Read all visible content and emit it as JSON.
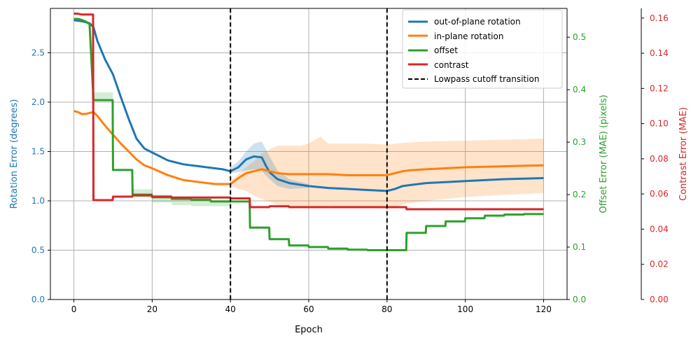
{
  "chart_data": {
    "type": "line",
    "xlabel": "Epoch",
    "xlim": [
      -6,
      126
    ],
    "x_ticks": [
      0,
      20,
      40,
      60,
      80,
      100,
      120
    ],
    "grid": true,
    "legend_position": "top-right",
    "axes": {
      "rotation": {
        "label": "Rotation Error (degrees)",
        "color": "#1f77b4",
        "ylim": [
          0,
          2.95
        ],
        "ticks": [
          "0.0",
          "0.5",
          "1.0",
          "1.5",
          "2.0",
          "2.5"
        ]
      },
      "offset": {
        "label": "Offset Error (MAE) (pixels)",
        "color": "#2ca02c",
        "ylim": [
          0,
          0.555
        ],
        "ticks": [
          "0.0",
          "0.1",
          "0.2",
          "0.3",
          "0.4",
          "0.5"
        ]
      },
      "contrast": {
        "label": "Contrast Error (MAE)",
        "color": "#d62728",
        "ylim": [
          0,
          0.1655
        ],
        "ticks": [
          "0.00",
          "0.02",
          "0.04",
          "0.06",
          "0.08",
          "0.10",
          "0.12",
          "0.14",
          "0.16"
        ]
      }
    },
    "vlines": [
      40,
      80
    ],
    "series": [
      {
        "name": "out-of-plane rotation",
        "axis": "rotation",
        "color": "#1f77b4",
        "x": [
          0,
          2,
          4,
          5,
          6,
          8,
          10,
          12,
          14,
          16,
          18,
          20,
          24,
          28,
          32,
          36,
          38,
          40,
          42,
          44,
          46,
          48,
          49,
          50,
          52,
          55,
          60,
          65,
          70,
          75,
          80,
          82,
          84,
          86,
          88,
          90,
          95,
          100,
          110,
          120
        ],
        "values": [
          2.83,
          2.82,
          2.8,
          2.76,
          2.62,
          2.43,
          2.28,
          2.05,
          1.83,
          1.63,
          1.53,
          1.49,
          1.41,
          1.37,
          1.35,
          1.33,
          1.32,
          1.3,
          1.34,
          1.42,
          1.45,
          1.44,
          1.36,
          1.29,
          1.22,
          1.18,
          1.15,
          1.13,
          1.12,
          1.11,
          1.1,
          1.12,
          1.15,
          1.16,
          1.17,
          1.18,
          1.19,
          1.2,
          1.22,
          1.23
        ],
        "band": {
          "x": [
            40,
            42,
            44,
            46,
            48,
            50,
            52,
            55,
            60
          ],
          "upper": [
            1.34,
            1.4,
            1.5,
            1.58,
            1.6,
            1.45,
            1.31,
            1.22,
            1.17
          ],
          "lower": [
            1.28,
            1.29,
            1.31,
            1.32,
            1.3,
            1.22,
            1.15,
            1.12,
            1.13
          ]
        }
      },
      {
        "name": "in-plane rotation",
        "axis": "rotation",
        "color": "#ff7f0e",
        "x": [
          0,
          1,
          2,
          3,
          4,
          5,
          6,
          8,
          10,
          12,
          14,
          16,
          18,
          20,
          24,
          28,
          32,
          36,
          38,
          40,
          42,
          44,
          46,
          48,
          50,
          52,
          55,
          60,
          65,
          70,
          75,
          80,
          82,
          84,
          86,
          90,
          100,
          110,
          120
        ],
        "values": [
          1.91,
          1.9,
          1.88,
          1.88,
          1.89,
          1.9,
          1.86,
          1.76,
          1.67,
          1.58,
          1.5,
          1.42,
          1.36,
          1.33,
          1.26,
          1.21,
          1.19,
          1.17,
          1.17,
          1.17,
          1.23,
          1.28,
          1.3,
          1.32,
          1.3,
          1.28,
          1.27,
          1.27,
          1.27,
          1.26,
          1.26,
          1.26,
          1.28,
          1.3,
          1.31,
          1.32,
          1.34,
          1.35,
          1.36
        ],
        "band": {
          "x": [
            40,
            42,
            44,
            46,
            48,
            50,
            52,
            55,
            58,
            60,
            62,
            63,
            65,
            70,
            75,
            80,
            85,
            90,
            100,
            110,
            120
          ],
          "upper": [
            1.19,
            1.27,
            1.34,
            1.4,
            1.48,
            1.52,
            1.56,
            1.56,
            1.56,
            1.58,
            1.63,
            1.65,
            1.58,
            1.58,
            1.58,
            1.57,
            1.59,
            1.6,
            1.61,
            1.62,
            1.63
          ],
          "lower": [
            1.15,
            1.12,
            1.1,
            1.05,
            1.02,
            0.99,
            0.96,
            0.94,
            0.93,
            0.95,
            0.93,
            0.94,
            0.95,
            0.93,
            0.93,
            0.92,
            0.97,
            1.0,
            1.04,
            1.06,
            1.08
          ]
        }
      },
      {
        "name": "offset",
        "axis": "offset",
        "color": "#2ca02c",
        "x": [
          0,
          1,
          2,
          3,
          4,
          5,
          9.9,
          10,
          14.9,
          15,
          19.9,
          20,
          24.9,
          25,
          29.9,
          30,
          34.9,
          35,
          39.9,
          40,
          44.9,
          45,
          49.9,
          50,
          54.9,
          55,
          59.9,
          60,
          64.9,
          65,
          69.9,
          70,
          74.9,
          75,
          79.9,
          80,
          84.9,
          85,
          89.9,
          90,
          94.9,
          95,
          99.9,
          100,
          104.9,
          105,
          109.9,
          110,
          114.9,
          115,
          120
        ],
        "values": [
          0.535,
          0.535,
          0.533,
          0.53,
          0.525,
          0.38,
          0.38,
          0.247,
          0.247,
          0.2,
          0.2,
          0.195,
          0.195,
          0.192,
          0.192,
          0.19,
          0.19,
          0.187,
          0.187,
          0.187,
          0.187,
          0.137,
          0.137,
          0.115,
          0.115,
          0.103,
          0.103,
          0.1,
          0.1,
          0.097,
          0.097,
          0.095,
          0.095,
          0.094,
          0.094,
          0.094,
          0.094,
          0.127,
          0.127,
          0.14,
          0.14,
          0.149,
          0.149,
          0.155,
          0.155,
          0.16,
          0.16,
          0.162,
          0.162,
          0.163,
          0.163
        ]
      },
      {
        "name": "contrast",
        "axis": "contrast",
        "color": "#d62728",
        "x": [
          0,
          1,
          2,
          3,
          4,
          4.9,
          5,
          9.9,
          10,
          14.9,
          15,
          19.9,
          20,
          24.9,
          25,
          39.9,
          40,
          44.9,
          45,
          49.9,
          50,
          54.9,
          55,
          79.9,
          80,
          84.9,
          85,
          120
        ],
        "values": [
          0.1625,
          0.1625,
          0.162,
          0.162,
          0.162,
          0.162,
          0.0565,
          0.0565,
          0.0585,
          0.0585,
          0.0592,
          0.0592,
          0.0585,
          0.0585,
          0.058,
          0.058,
          0.0575,
          0.0575,
          0.0525,
          0.0525,
          0.053,
          0.053,
          0.0525,
          0.0525,
          0.0525,
          0.0525,
          0.0513,
          0.0513
        ]
      },
      {
        "name": "Lowpass cutoff transition",
        "axis": "rotation",
        "color": "#000000",
        "style": "dashed"
      }
    ],
    "offset_bands": [
      {
        "x": [
          4.5,
          10
        ],
        "upper": 0.395,
        "lower": 0.38
      },
      {
        "x": [
          15,
          20
        ],
        "upper": 0.21,
        "lower": 0.195
      },
      {
        "x": [
          20,
          25
        ],
        "upper": 0.2,
        "lower": 0.185
      },
      {
        "x": [
          25,
          30
        ],
        "upper": 0.195,
        "lower": 0.18
      },
      {
        "x": [
          30,
          40
        ],
        "upper": 0.19,
        "lower": 0.178
      }
    ]
  }
}
